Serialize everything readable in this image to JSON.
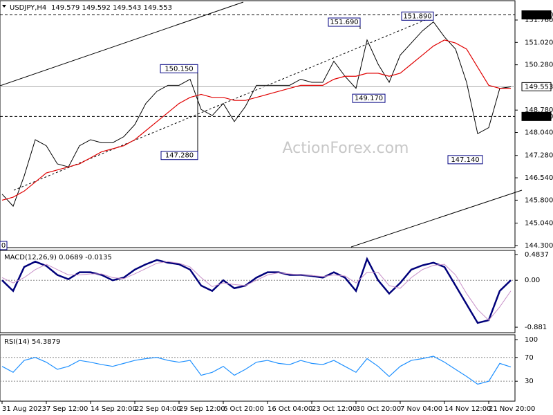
{
  "chart_data": [
    {
      "type": "line",
      "title": "USDJPY,H4",
      "subtitle": "149.579 149.592 149.543 149.553",
      "watermark": "ActionForex.com",
      "ylim": [
        144.23,
        152.4
      ],
      "yticks": [
        {
          "value": 151.76,
          "label": "151.760"
        },
        {
          "value": 151.02,
          "label": "151.020"
        },
        {
          "value": 150.28,
          "label": "150.280"
        },
        {
          "value": 148.78,
          "label": "148.780"
        },
        {
          "value": 148.04,
          "label": "148.040"
        },
        {
          "value": 147.28,
          "label": "147.280"
        },
        {
          "value": 146.54,
          "label": "146.540"
        },
        {
          "value": 145.8,
          "label": "145.800"
        },
        {
          "value": 145.04,
          "label": "145.040"
        },
        {
          "value": 144.3,
          "label": "144.300"
        }
      ],
      "levels": [
        {
          "value": 151.93,
          "label": "151.930"
        },
        {
          "value": 148.57,
          "label": "148.570"
        },
        {
          "value": 149.553,
          "label": "149.553"
        }
      ],
      "annotations": [
        {
          "value": 150.15,
          "label": "150.150"
        },
        {
          "value": 147.28,
          "label": "147.280"
        },
        {
          "value": 151.69,
          "label": "151.690"
        },
        {
          "value": 149.17,
          "label": "149.170"
        },
        {
          "value": 151.89,
          "label": "151.890"
        },
        {
          "value": 147.14,
          "label": "147.140"
        },
        {
          "value": 144.3,
          "label": "0"
        }
      ],
      "series": [
        {
          "color": "#000000",
          "values": [
            146.0,
            145.6,
            146.6,
            147.8,
            147.6,
            147.0,
            146.9,
            147.6,
            147.8,
            147.7,
            147.7,
            147.9,
            148.3,
            149.0,
            149.4,
            149.6,
            149.6,
            149.8,
            148.8,
            148.6,
            149.0,
            148.4,
            148.9,
            149.6,
            149.6,
            149.6,
            149.6,
            149.8,
            149.7,
            149.7,
            150.4,
            149.9,
            149.5,
            151.1,
            150.3,
            149.7,
            150.6,
            151.0,
            151.4,
            151.7,
            151.2,
            150.8,
            149.7,
            148.0,
            148.2,
            149.5,
            149.55
          ]
        },
        {
          "color": "#e00000",
          "values": [
            145.8,
            145.9,
            146.1,
            146.4,
            146.7,
            146.8,
            146.9,
            147.0,
            147.2,
            147.4,
            147.5,
            147.6,
            147.8,
            148.1,
            148.4,
            148.7,
            149.0,
            149.2,
            149.3,
            149.2,
            149.2,
            149.1,
            149.1,
            149.2,
            149.3,
            149.4,
            149.5,
            149.6,
            149.6,
            149.6,
            149.8,
            149.9,
            149.9,
            150.0,
            150.0,
            149.9,
            150.0,
            150.3,
            150.6,
            150.9,
            151.1,
            151.0,
            150.8,
            150.2,
            149.6,
            149.5,
            149.5
          ]
        }
      ]
    },
    {
      "type": "line",
      "title": "MACD(12,26,9) 0.0689 -0.0135",
      "ylim": [
        -0.984,
        0.561
      ],
      "yticks": [
        0.4837,
        {
          "value": 0,
          "label": "0.00"
        },
        -0.881
      ],
      "series": [
        {
          "color": "#00007a",
          "values": [
            0.0,
            -0.2,
            0.25,
            0.35,
            0.27,
            0.1,
            0.02,
            0.15,
            0.15,
            0.1,
            0.0,
            0.05,
            0.2,
            0.3,
            0.38,
            0.33,
            0.3,
            0.2,
            -0.1,
            -0.2,
            0.0,
            -0.15,
            -0.1,
            0.05,
            0.15,
            0.15,
            0.1,
            0.1,
            0.08,
            0.05,
            0.15,
            0.05,
            -0.2,
            0.4,
            0.0,
            -0.25,
            -0.05,
            0.2,
            0.28,
            0.33,
            0.25,
            -0.1,
            -0.45,
            -0.8,
            -0.75,
            -0.2,
            0.0
          ]
        },
        {
          "color": "#c890c8",
          "values": [
            0.05,
            -0.05,
            0.05,
            0.2,
            0.3,
            0.2,
            0.1,
            0.1,
            0.12,
            0.12,
            0.05,
            0.03,
            0.12,
            0.22,
            0.32,
            0.35,
            0.32,
            0.25,
            0.05,
            -0.12,
            -0.05,
            -0.08,
            -0.1,
            0.0,
            0.1,
            0.14,
            0.12,
            0.1,
            0.09,
            0.07,
            0.1,
            0.08,
            -0.05,
            0.15,
            0.15,
            -0.1,
            -0.15,
            0.05,
            0.2,
            0.28,
            0.3,
            0.1,
            -0.25,
            -0.55,
            -0.75,
            -0.5,
            -0.2
          ]
        }
      ]
    },
    {
      "type": "line",
      "title": "RSI(14) 54.3879",
      "ylim": [
        -3.5,
        108.1
      ],
      "yticks": [
        100,
        70,
        30
      ],
      "x": [
        "31 Aug 2023",
        null,
        null,
        null,
        "7 Sep 12:00",
        null,
        null,
        null,
        "14 Sep 20:00",
        null,
        null,
        null,
        "22 Sep 04:00",
        null,
        null,
        null,
        "29 Sep 12:00",
        null,
        null,
        null,
        "6 Oct 20:00",
        null,
        null,
        null,
        "16 Oct 04:00",
        null,
        null,
        null,
        "23 Oct 12:00",
        null,
        null,
        null,
        "30 Oct 20:00",
        null,
        null,
        null,
        "7 Nov 04:00",
        null,
        null,
        null,
        "14 Nov 12:00",
        null,
        null,
        null,
        "21 Nov 20:00",
        null,
        null
      ],
      "series": [
        {
          "color": "#1e90ff",
          "values": [
            55,
            45,
            65,
            70,
            62,
            50,
            55,
            65,
            62,
            58,
            55,
            60,
            65,
            68,
            70,
            65,
            62,
            65,
            40,
            45,
            55,
            40,
            50,
            62,
            65,
            60,
            58,
            65,
            60,
            58,
            65,
            55,
            45,
            68,
            55,
            38,
            55,
            65,
            68,
            72,
            62,
            50,
            38,
            25,
            30,
            60,
            54
          ]
        }
      ]
    }
  ]
}
